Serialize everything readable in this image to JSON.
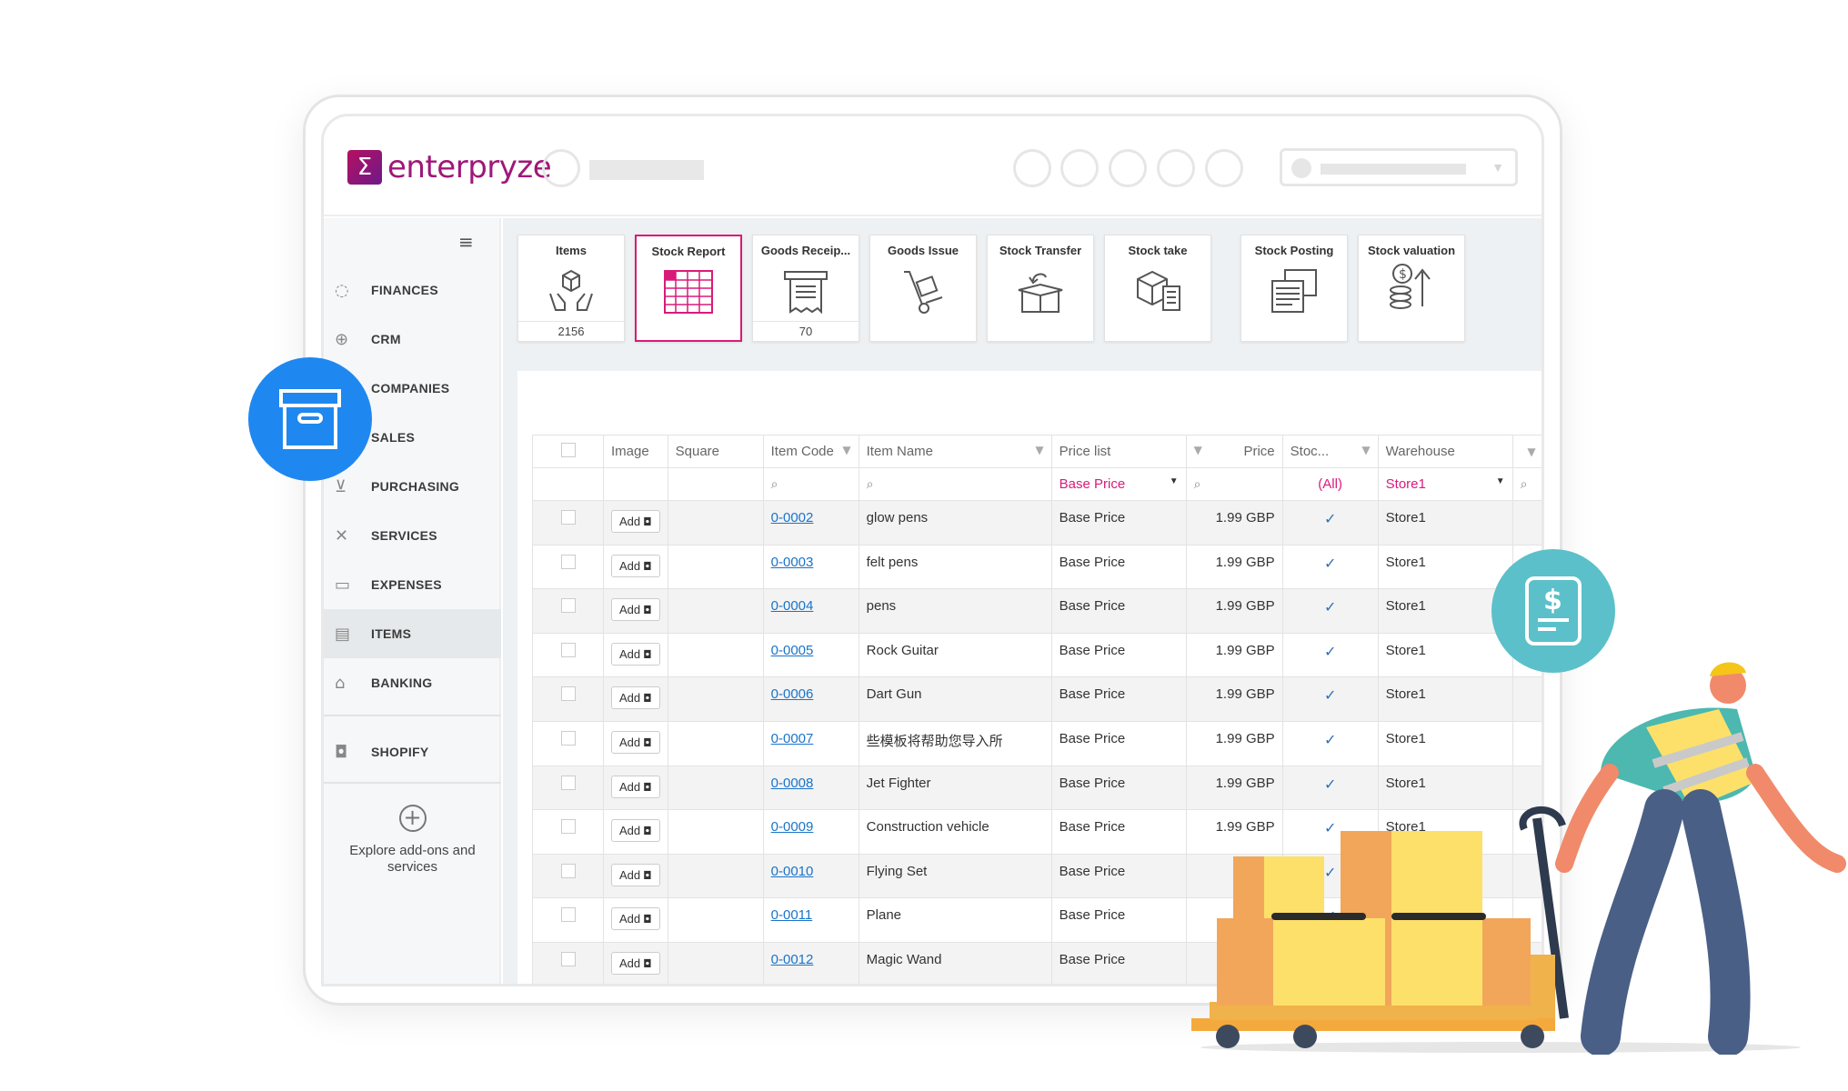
{
  "brand": {
    "logo_text": "enterpryze",
    "logo_mark": "Σ"
  },
  "sidebar": {
    "menu_icon": "hamburger-icon",
    "items": [
      {
        "label": "FINANCES",
        "icon": "piggy-bank-icon"
      },
      {
        "label": "CRM",
        "icon": "globe-icon"
      },
      {
        "label": "COMPANIES",
        "icon": "building-icon"
      },
      {
        "label": "SALES",
        "icon": "tag-icon"
      },
      {
        "label": "PURCHASING",
        "icon": "cart-icon"
      },
      {
        "label": "SERVICES",
        "icon": "tools-icon"
      },
      {
        "label": "EXPENSES",
        "icon": "wallet-icon"
      },
      {
        "label": "ITEMS",
        "icon": "box-icon"
      },
      {
        "label": "BANKING",
        "icon": "bank-icon"
      },
      {
        "label": "SHOPIFY",
        "icon": "shopify-icon"
      }
    ],
    "explore_label": "Explore add-ons and services"
  },
  "tiles": [
    {
      "title": "Items",
      "count": "2156",
      "icon": "hands-box-icon"
    },
    {
      "title": "Stock Report",
      "count": "",
      "icon": "grid-report-icon"
    },
    {
      "title": "Goods Receip...",
      "count": "70",
      "icon": "receipt-icon"
    },
    {
      "title": "Goods Issue",
      "count": "",
      "icon": "hand-truck-icon"
    },
    {
      "title": "Stock Transfer",
      "count": "",
      "icon": "box-transfer-icon"
    },
    {
      "title": "Stock take",
      "count": "",
      "icon": "box-checklist-icon"
    },
    {
      "title": "Stock Posting",
      "count": "",
      "icon": "documents-icon"
    },
    {
      "title": "Stock valuation",
      "count": "",
      "icon": "coins-up-icon"
    }
  ],
  "table": {
    "headers": [
      "Image",
      "Square",
      "Item Code",
      "Item Name",
      "Price list",
      "Price",
      "Stoc...",
      "Warehouse"
    ],
    "filters": {
      "price_list": "Base Price",
      "stock": "(All)",
      "warehouse": "Store1"
    },
    "add_label": "Add",
    "rows": [
      {
        "code": "0-0002",
        "name": "glow pens",
        "price_list": "Base Price",
        "price": "1.99 GBP",
        "warehouse": "Store1"
      },
      {
        "code": "0-0003",
        "name": "felt pens",
        "price_list": "Base Price",
        "price": "1.99 GBP",
        "warehouse": "Store1"
      },
      {
        "code": "0-0004",
        "name": "pens",
        "price_list": "Base Price",
        "price": "1.99 GBP",
        "warehouse": "Store1"
      },
      {
        "code": "0-0005",
        "name": "Rock Guitar",
        "price_list": "Base Price",
        "price": "1.99 GBP",
        "warehouse": "Store1"
      },
      {
        "code": "0-0006",
        "name": "Dart Gun",
        "price_list": "Base Price",
        "price": "1.99 GBP",
        "warehouse": "Store1"
      },
      {
        "code": "0-0007",
        "name": "些模板将帮助您导入所",
        "price_list": "Base Price",
        "price": "1.99 GBP",
        "warehouse": "Store1"
      },
      {
        "code": "0-0008",
        "name": "Jet Fighter",
        "price_list": "Base Price",
        "price": "1.99 GBP",
        "warehouse": "Store1"
      },
      {
        "code": "0-0009",
        "name": "Construction vehicle",
        "price_list": "Base Price",
        "price": "1.99 GBP",
        "warehouse": "Store1"
      },
      {
        "code": "0-0010",
        "name": "Flying Set",
        "price_list": "Base Price",
        "price": "1.9",
        "warehouse": ""
      },
      {
        "code": "0-0011",
        "name": "Plane",
        "price_list": "Base Price",
        "price": "1.",
        "warehouse": ""
      },
      {
        "code": "0-0012",
        "name": "Magic Wand",
        "price_list": "Base Price",
        "price": "2.",
        "warehouse": ""
      }
    ]
  },
  "decor": {
    "archive_bubble_icon": "archive-box-icon",
    "invoice_bubble_icon": "dollar-document-icon",
    "illustration": "worker-pallet-jack-illustration"
  }
}
